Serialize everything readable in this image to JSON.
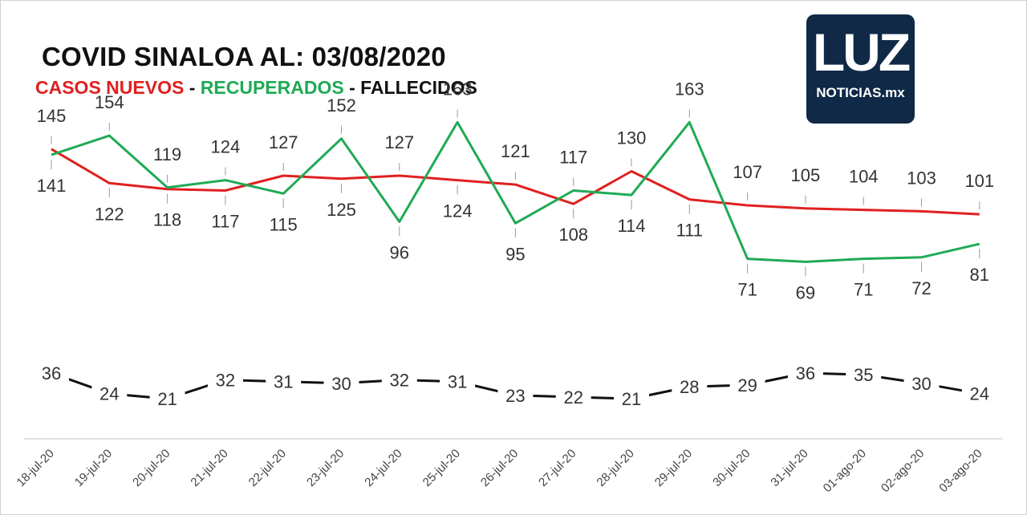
{
  "chart_data": {
    "type": "line",
    "title": "COVID SINALOA AL: 03/08/2020",
    "categories": [
      "18-jul-20",
      "19-jul-20",
      "20-jul-20",
      "21-jul-20",
      "22-jul-20",
      "23-jul-20",
      "24-jul-20",
      "25-jul-20",
      "26-jul-20",
      "27-jul-20",
      "28-jul-20",
      "29-jul-20",
      "30-jul-20",
      "31-jul-20",
      "01-ago-20",
      "02-ago-20",
      "03-ago-20"
    ],
    "series": [
      {
        "name": "CASOS NUEVOS",
        "color": "#e02020",
        "values": [
          145,
          122,
          118,
          117,
          127,
          125,
          127,
          124,
          121,
          108,
          130,
          111,
          107,
          105,
          104,
          103,
          101
        ]
      },
      {
        "name": "RECUPERADOS",
        "color": "#1faa55",
        "values": [
          141,
          154,
          119,
          124,
          115,
          152,
          96,
          163,
          95,
          117,
          114,
          163,
          71,
          69,
          71,
          72,
          81
        ]
      },
      {
        "name": "FALLECIDOS",
        "color": "#111111",
        "values": [
          36,
          24,
          21,
          32,
          31,
          30,
          32,
          31,
          23,
          22,
          21,
          28,
          29,
          36,
          35,
          30,
          24
        ]
      }
    ],
    "separators": [
      " - ",
      " - "
    ],
    "grid": false,
    "legend": "top-left"
  },
  "logo": {
    "word": "LUZ",
    "sub": "NOTICIAS.mx"
  }
}
